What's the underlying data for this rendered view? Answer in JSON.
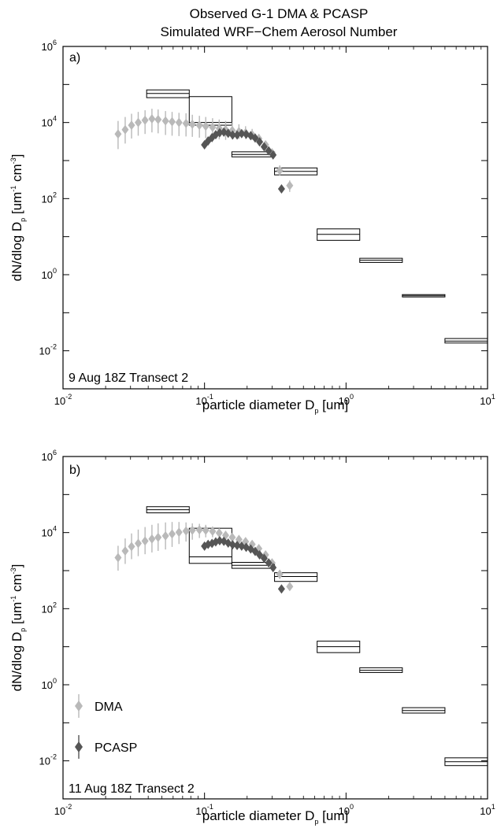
{
  "figure": {
    "title_line1": "Observed G-1 DMA & PCASP",
    "title_line2": "Simulated WRF−Chem Aerosol Number"
  },
  "colors": {
    "dma": "#b9b9b9",
    "pcasp": "#555555",
    "axis": "#000000"
  },
  "legend": {
    "dma_label": "DMA",
    "pcasp_label": "PCASP"
  },
  "chart_data": [
    {
      "type": "scatter",
      "panel_label": "a)",
      "annotation": "9 Aug 18Z Transect 2",
      "xlabel": "particle diameter D",
      "xlabel_sub": "p",
      "xlabel_unit": " [um]",
      "ylabel": "dN/dlog D",
      "ylabel_sub": "p",
      "ylabel_unit": " [um",
      "ylabel_exp1": "-1",
      "ylabel_mid": " cm",
      "ylabel_exp2": "-3",
      "ylabel_end": "]",
      "xscale": "log",
      "yscale": "log",
      "xlim": [
        0.01,
        10
      ],
      "ylim": [
        0.001,
        1000000
      ],
      "xticks": [
        {
          "value": 0.01,
          "base": "10",
          "exp": "-2"
        },
        {
          "value": 0.1,
          "base": "10",
          "exp": "-1"
        },
        {
          "value": 1,
          "base": "10",
          "exp": "0"
        },
        {
          "value": 10,
          "base": "10",
          "exp": "1"
        }
      ],
      "yticks": [
        {
          "value": 0.01,
          "base": "10",
          "exp": "-2"
        },
        {
          "value": 1,
          "base": "10",
          "exp": "0"
        },
        {
          "value": 100,
          "base": "10",
          "exp": "2"
        },
        {
          "value": 10000,
          "base": "10",
          "exp": "4"
        },
        {
          "value": 1000000,
          "base": "10",
          "exp": "6"
        }
      ],
      "grid": false,
      "legend_shown": false,
      "series": [
        {
          "name": "DMA",
          "marker": "diamond",
          "x": [
            0.0245,
            0.0275,
            0.0305,
            0.034,
            0.038,
            0.0425,
            0.047,
            0.053,
            0.059,
            0.066,
            0.074,
            0.082,
            0.092,
            0.102,
            0.114,
            0.127,
            0.141,
            0.157,
            0.175,
            0.195,
            0.217,
            0.242,
            0.27,
            0.3,
            0.34,
            0.4
          ],
          "y": [
            5000,
            6500,
            8500,
            10000,
            11500,
            12500,
            12000,
            11000,
            10500,
            10000,
            9500,
            9000,
            8500,
            8000,
            7500,
            7000,
            6500,
            6200,
            5800,
            5400,
            4800,
            3800,
            2600,
            1600,
            550,
            220
          ],
          "y_low": [
            2000,
            2800,
            3800,
            4500,
            5000,
            5500,
            5200,
            4700,
            4500,
            4400,
            4300,
            4200,
            4000,
            3900,
            3700,
            3600,
            3500,
            3600,
            3700,
            3700,
            3500,
            3000,
            2100,
            1250,
            400,
            150
          ],
          "y_high": [
            11000,
            14000,
            17000,
            19000,
            21000,
            23000,
            22000,
            20000,
            19000,
            18000,
            17500,
            16000,
            15000,
            14000,
            13000,
            12000,
            11000,
            10000,
            9000,
            8000,
            6800,
            5000,
            3300,
            2000,
            750,
            300
          ]
        },
        {
          "name": "PCASP",
          "marker": "diamond",
          "x": [
            0.1,
            0.106,
            0.113,
            0.12,
            0.128,
            0.137,
            0.147,
            0.158,
            0.17,
            0.183,
            0.197,
            0.212,
            0.228,
            0.245,
            0.264,
            0.284,
            0.305,
            0.35
          ],
          "y": [
            2600,
            3300,
            4000,
            4800,
            5400,
            5600,
            5200,
            4700,
            4700,
            5100,
            4900,
            4500,
            3900,
            3100,
            2300,
            1800,
            1400,
            180
          ]
        },
        {
          "name": "WRF-Chem",
          "marker": "box",
          "bins": [
            {
              "x0": 0.039,
              "x1": 0.078,
              "y_low": 45000,
              "y_mid": 58000,
              "y_high": 72000
            },
            {
              "x0": 0.078,
              "x1": 0.156,
              "y_low": 8500,
              "y_mid": 10000,
              "y_high": 48000
            },
            {
              "x0": 0.156,
              "x1": 0.3125,
              "y_low": 1250,
              "y_mid": 1450,
              "y_high": 1700
            },
            {
              "x0": 0.3125,
              "x1": 0.625,
              "y_low": 420,
              "y_mid": 520,
              "y_high": 640
            },
            {
              "x0": 0.625,
              "x1": 1.25,
              "y_low": 8,
              "y_mid": 11.5,
              "y_high": 16
            },
            {
              "x0": 1.25,
              "x1": 2.5,
              "y_low": 2.1,
              "y_mid": 2.4,
              "y_high": 2.7
            },
            {
              "x0": 2.5,
              "x1": 5,
              "y_low": 0.26,
              "y_mid": 0.28,
              "y_high": 0.3
            },
            {
              "x0": 5,
              "x1": 10,
              "y_low": 0.016,
              "y_mid": 0.018,
              "y_high": 0.021
            }
          ]
        }
      ]
    },
    {
      "type": "scatter",
      "panel_label": "b)",
      "annotation": "11 Aug 18Z Transect 2",
      "xlabel": "particle diameter D",
      "xlabel_sub": "p",
      "xlabel_unit": " [um]",
      "ylabel": "dN/dlog D",
      "ylabel_sub": "p",
      "ylabel_unit": " [um",
      "ylabel_exp1": "-1",
      "ylabel_mid": " cm",
      "ylabel_exp2": "-3",
      "ylabel_end": "]",
      "xscale": "log",
      "yscale": "log",
      "xlim": [
        0.01,
        10
      ],
      "ylim": [
        0.001,
        1000000
      ],
      "xticks": [
        {
          "value": 0.01,
          "base": "10",
          "exp": "-2"
        },
        {
          "value": 0.1,
          "base": "10",
          "exp": "-1"
        },
        {
          "value": 1,
          "base": "10",
          "exp": "0"
        },
        {
          "value": 10,
          "base": "10",
          "exp": "1"
        }
      ],
      "yticks": [
        {
          "value": 0.01,
          "base": "10",
          "exp": "-2"
        },
        {
          "value": 1,
          "base": "10",
          "exp": "0"
        },
        {
          "value": 100,
          "base": "10",
          "exp": "2"
        },
        {
          "value": 10000,
          "base": "10",
          "exp": "4"
        },
        {
          "value": 1000000,
          "base": "10",
          "exp": "6"
        }
      ],
      "grid": false,
      "legend_shown": true,
      "legend_position": "bottom-left",
      "series": [
        {
          "name": "DMA",
          "marker": "diamond",
          "x": [
            0.0245,
            0.0275,
            0.0305,
            0.034,
            0.038,
            0.0425,
            0.047,
            0.053,
            0.059,
            0.066,
            0.074,
            0.082,
            0.092,
            0.102,
            0.114,
            0.127,
            0.141,
            0.157,
            0.175,
            0.195,
            0.217,
            0.242,
            0.27,
            0.3,
            0.34,
            0.4
          ],
          "y": [
            2200,
            3300,
            4300,
            5200,
            6000,
            6800,
            7500,
            8200,
            9200,
            10200,
            11000,
            11500,
            11800,
            11500,
            10800,
            9800,
            8500,
            7500,
            6600,
            5800,
            4900,
            3800,
            2600,
            1600,
            800,
            380
          ],
          "y_low": [
            1000,
            1500,
            2000,
            2400,
            2700,
            3000,
            3300,
            3600,
            4200,
            5000,
            5800,
            6500,
            7200,
            7500,
            7500,
            7000,
            6300,
            5700,
            5100,
            4600,
            3900,
            3100,
            2150,
            1300,
            600,
            300
          ],
          "y_high": [
            4500,
            7000,
            9500,
            12000,
            14000,
            16000,
            17500,
            18500,
            19000,
            19000,
            18500,
            17500,
            17000,
            16000,
            14500,
            13000,
            11000,
            9500,
            8200,
            7200,
            6100,
            4700,
            3200,
            2000,
            1050,
            470
          ]
        },
        {
          "name": "PCASP",
          "marker": "diamond",
          "x": [
            0.1,
            0.106,
            0.113,
            0.12,
            0.128,
            0.137,
            0.147,
            0.158,
            0.17,
            0.183,
            0.197,
            0.212,
            0.228,
            0.245,
            0.264,
            0.284,
            0.305,
            0.35
          ],
          "y": [
            4400,
            4900,
            5200,
            5700,
            6100,
            5900,
            5300,
            4800,
            4600,
            4400,
            4100,
            3700,
            3200,
            2600,
            2100,
            1600,
            1200,
            330
          ]
        },
        {
          "name": "WRF-Chem",
          "marker": "box",
          "bins": [
            {
              "x0": 0.039,
              "x1": 0.078,
              "y_low": 33000,
              "y_mid": 40000,
              "y_high": 48000
            },
            {
              "x0": 0.078,
              "x1": 0.156,
              "y_low": 1550,
              "y_mid": 2300,
              "y_high": 13000
            },
            {
              "x0": 0.156,
              "x1": 0.3125,
              "y_low": 1150,
              "y_mid": 1380,
              "y_high": 1650
            },
            {
              "x0": 0.3125,
              "x1": 0.625,
              "y_low": 520,
              "y_mid": 700,
              "y_high": 880
            },
            {
              "x0": 0.625,
              "x1": 1.25,
              "y_low": 7,
              "y_mid": 10,
              "y_high": 14
            },
            {
              "x0": 1.25,
              "x1": 2.5,
              "y_low": 2.1,
              "y_mid": 2.4,
              "y_high": 2.8
            },
            {
              "x0": 2.5,
              "x1": 5,
              "y_low": 0.18,
              "y_mid": 0.21,
              "y_high": 0.25
            },
            {
              "x0": 5,
              "x1": 10,
              "y_low": 0.0075,
              "y_mid": 0.0095,
              "y_high": 0.012
            }
          ]
        }
      ]
    }
  ]
}
